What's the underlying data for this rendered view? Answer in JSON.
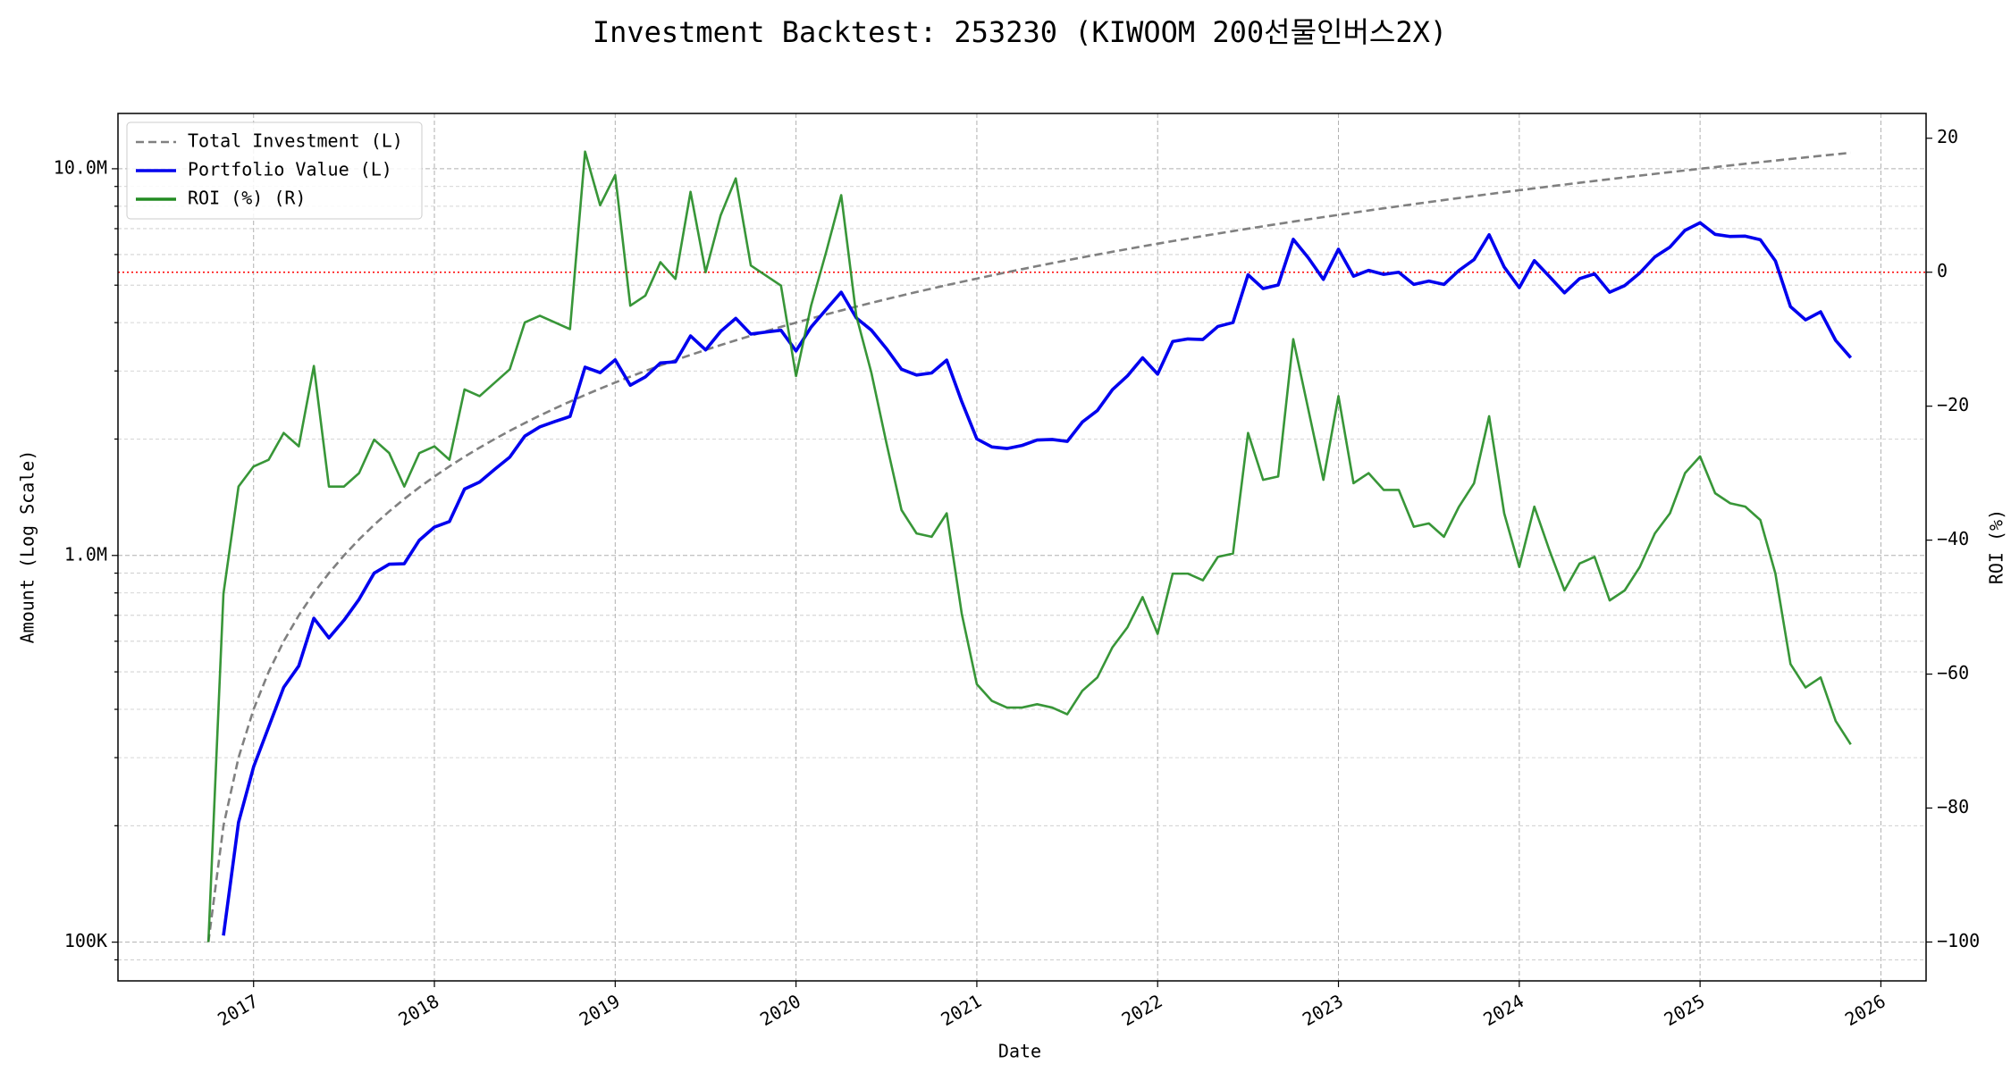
{
  "chart_data": {
    "type": "line",
    "title": "Investment Backtest: 253230 (KIWOOM 200선물인버스2X)",
    "xlabel": "Date",
    "ylabel": "Amount (Log Scale)",
    "y2label": "ROI (%)",
    "ylabel_color": "#0000cc",
    "y2label_color": "#228b22",
    "x": [
      "2016-10",
      "2016-11",
      "2016-12",
      "2017-01",
      "2017-02",
      "2017-03",
      "2017-04",
      "2017-05",
      "2017-06",
      "2017-07",
      "2017-08",
      "2017-09",
      "2017-10",
      "2017-11",
      "2017-12",
      "2018-01",
      "2018-02",
      "2018-03",
      "2018-04",
      "2018-05",
      "2018-06",
      "2018-07",
      "2018-08",
      "2018-09",
      "2018-10",
      "2018-11",
      "2018-12",
      "2019-01",
      "2019-02",
      "2019-03",
      "2019-04",
      "2019-05",
      "2019-06",
      "2019-07",
      "2019-08",
      "2019-09",
      "2019-10",
      "2019-11",
      "2019-12",
      "2020-01",
      "2020-02",
      "2020-03",
      "2020-04",
      "2020-05",
      "2020-06",
      "2020-07",
      "2020-08",
      "2020-09",
      "2020-10",
      "2020-11",
      "2020-12",
      "2021-01",
      "2021-02",
      "2021-03",
      "2021-04",
      "2021-05",
      "2021-06",
      "2021-07",
      "2021-08",
      "2021-09",
      "2021-10",
      "2021-11",
      "2021-12",
      "2022-01",
      "2022-02",
      "2022-03",
      "2022-04",
      "2022-05",
      "2022-06",
      "2022-07",
      "2022-08",
      "2022-09",
      "2022-10",
      "2022-11",
      "2022-12",
      "2023-01",
      "2023-02",
      "2023-03",
      "2023-04",
      "2023-05",
      "2023-06",
      "2023-07",
      "2023-08",
      "2023-09",
      "2023-10",
      "2023-11",
      "2023-12",
      "2024-01",
      "2024-02",
      "2024-03",
      "2024-04",
      "2024-05",
      "2024-06",
      "2024-07",
      "2024-08",
      "2024-09",
      "2024-10",
      "2024-11",
      "2024-12",
      "2025-01",
      "2025-02",
      "2025-03",
      "2025-04",
      "2025-05",
      "2025-06",
      "2025-07",
      "2025-08",
      "2025-09",
      "2025-10",
      "2025-11"
    ],
    "xlim": [
      "2016-04",
      "2026-04"
    ],
    "xticks": [
      2017,
      2018,
      2019,
      2020,
      2021,
      2022,
      2023,
      2024,
      2025,
      2026
    ],
    "ylog": true,
    "ylim": [
      79400,
      13900000
    ],
    "yticks": [
      {
        "value": 100000,
        "label": "100K"
      },
      {
        "value": 1000000,
        "label": "1.0M"
      },
      {
        "value": 10000000,
        "label": "10.0M"
      }
    ],
    "yticks_minor": [
      90000,
      200000,
      300000,
      400000,
      500000,
      600000,
      700000,
      800000,
      900000,
      2000000,
      3000000,
      4000000,
      5000000,
      6000000,
      7000000,
      8000000,
      9000000
    ],
    "y2lim": [
      -105.8,
      23.7
    ],
    "y2ticks": [
      {
        "value": -100,
        "label": "−100"
      },
      {
        "value": -80,
        "label": "−80"
      },
      {
        "value": -60,
        "label": "−60"
      },
      {
        "value": -40,
        "label": "−40"
      },
      {
        "value": -20,
        "label": "−20"
      },
      0,
      20
    ],
    "grid": true,
    "legend": "upper left",
    "hline": {
      "axis": "y2",
      "value": 0,
      "color": "red",
      "linestyle": "dotted"
    },
    "series": [
      {
        "name": "Total Investment (L)",
        "color": "#808080",
        "linestyle": "dashed",
        "axis": "y",
        "values": [
          100000,
          200000,
          300000,
          400000,
          500000,
          600000,
          700000,
          800000,
          900000,
          1000000,
          1100000,
          1200000,
          1300000,
          1400000,
          1500000,
          1600000,
          1700000,
          1800000,
          1900000,
          2000000,
          2100000,
          2200000,
          2300000,
          2400000,
          2500000,
          2600000,
          2700000,
          2800000,
          2900000,
          3000000,
          3100000,
          3200000,
          3300000,
          3400000,
          3500000,
          3600000,
          3700000,
          3800000,
          3900000,
          4000000,
          4100000,
          4200000,
          4300000,
          4400000,
          4500000,
          4600000,
          4700000,
          4800000,
          4900000,
          5000000,
          5100000,
          5200000,
          5300000,
          5400000,
          5500000,
          5600000,
          5700000,
          5800000,
          5900000,
          6000000,
          6100000,
          6200000,
          6300000,
          6400000,
          6500000,
          6600000,
          6700000,
          6800000,
          6900000,
          7000000,
          7100000,
          7200000,
          7300000,
          7400000,
          7500000,
          7600000,
          7700000,
          7800000,
          7900000,
          8000000,
          8100000,
          8200000,
          8300000,
          8400000,
          8500000,
          8600000,
          8700000,
          8800000,
          8900000,
          9000000,
          9100000,
          9200000,
          9300000,
          9400000,
          9500000,
          9600000,
          9700000,
          9800000,
          9900000,
          10000000,
          10100000,
          10200000,
          10300000,
          10400000,
          10500000,
          10600000,
          10700000,
          10800000,
          10900000,
          11000000
        ]
      },
      {
        "name": "Portfolio Value (L)",
        "color": "#0000ee",
        "linestyle": "solid",
        "axis": "y",
        "values": [
          null,
          104000,
          204000,
          284000,
          360000,
          456000,
          518000,
          688000,
          612000,
          680000,
          770000,
          900000,
          949000,
          952000,
          1095000,
          1184000,
          1224000,
          1485000,
          1548500,
          1670000,
          1795500,
          2035000,
          2150500,
          2220000,
          2287500,
          3068000,
          2970000,
          3206000,
          2755000,
          2895000,
          3146500,
          3168000,
          3696000,
          3400000,
          3797500,
          4104000,
          3737000,
          3781000,
          3822000,
          3380000,
          3895000,
          4326000,
          4794500,
          4114000,
          3825000,
          3427000,
          3031500,
          2928000,
          2964500,
          3200000,
          2499000,
          2002000,
          1908000,
          1890000,
          1925000,
          1988000,
          1995000,
          1972000,
          2212500,
          2370000,
          2684000,
          2914000,
          3244500,
          2944000,
          3575000,
          3630000,
          3618000,
          3910000,
          4002000,
          5320000,
          4899000,
          5004000,
          6570000,
          5883000,
          5175000,
          6194000,
          5274500,
          5460000,
          5332500,
          5400000,
          5022000,
          5125000,
          5021500,
          5460000,
          5822500,
          6751000,
          5568000,
          4928000,
          5785000,
          5265000,
          4777500,
          5198000,
          5347500,
          4794000,
          4987500,
          5376000,
          5917000,
          6272000,
          6930000,
          7250000,
          6767000,
          6681000,
          6695000,
          6552000,
          5775000,
          4399000,
          4066000,
          4266000,
          3597000,
          3245000
        ]
      },
      {
        "name": "ROI (%) (R)",
        "color": "#228b22",
        "linestyle": "solid",
        "axis": "y2",
        "values": [
          -100,
          -48,
          -32,
          -29,
          -28,
          -24,
          -26,
          -14,
          -32,
          -32,
          -30,
          -25,
          -27,
          -32,
          -27,
          -26,
          -28,
          -17.5,
          -18.5,
          -16.5,
          -14.5,
          -7.5,
          -6.5,
          -7.5,
          -8.5,
          18,
          10,
          14.5,
          -5,
          -3.5,
          1.5,
          -1,
          12,
          0,
          8.5,
          14,
          1,
          -0.5,
          -2,
          -15.5,
          -5,
          3,
          11.5,
          -6.5,
          -15,
          -25.5,
          -35.5,
          -39,
          -39.5,
          -36,
          -51,
          -61.5,
          -64,
          -65,
          -65,
          -64.5,
          -65,
          -66,
          -62.5,
          -60.5,
          -56,
          -53,
          -48.5,
          -54,
          -45,
          -45,
          -46,
          -42.5,
          -42,
          -24,
          -31,
          -30.5,
          -10,
          -20.5,
          -31,
          -18.5,
          -31.5,
          -30,
          -32.5,
          -32.5,
          -38,
          -37.5,
          -39.5,
          -35,
          -31.5,
          -21.5,
          -36,
          -44,
          -35,
          -41.5,
          -47.5,
          -43.5,
          -42.5,
          -49,
          -47.5,
          -44,
          -39,
          -36,
          -30,
          -27.5,
          -33,
          -34.5,
          -35,
          -37,
          -45,
          -58.5,
          -62,
          -60.5,
          -67,
          -70.5
        ]
      }
    ]
  }
}
